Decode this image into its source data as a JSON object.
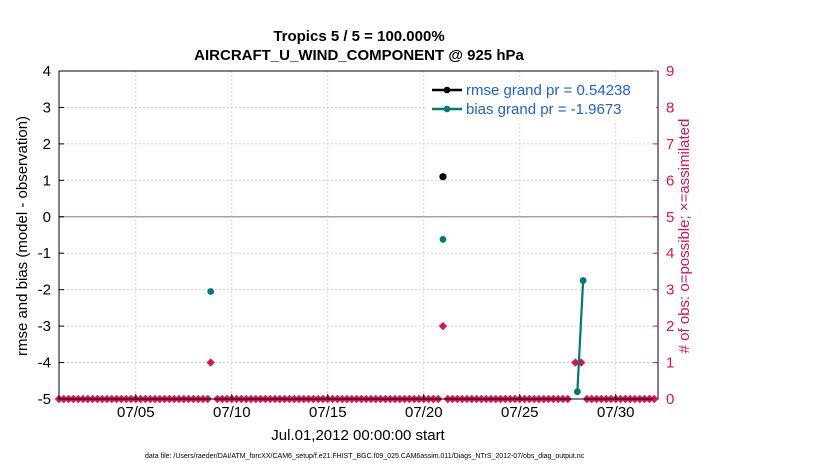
{
  "chart_data": {
    "type": "scatter",
    "title": "Tropics 5 / 5 = 100.000%",
    "subtitle": "AIRCRAFT_U_WIND_COMPONENT @ 925 hPa",
    "xlabel": "Jul.01,2012 00:00:00 start",
    "ylabel_left": "rmse and bias (model - observation)",
    "ylabel_right": "# of obs: o=possible; ×=assimilated",
    "footer": "data file: /Users/raeder/DAI/ATM_forcXX/CAM6_setup/f.e21.FHIST_BGC.f09_025.CAM6assim.011/Diags_NTrS_2012-07/obs_diag_output.nc",
    "xlim": [
      1,
      32.2
    ],
    "ylim_left": [
      -5,
      4
    ],
    "ylim_right": [
      0,
      9
    ],
    "x_ticks": [
      5,
      10,
      15,
      20,
      25,
      30
    ],
    "x_tick_labels": [
      "07/05",
      "07/10",
      "07/15",
      "07/20",
      "07/25",
      "07/30"
    ],
    "y_left_ticks": [
      "4",
      "3",
      "2",
      "1",
      "0",
      "-1",
      "-2",
      "-3",
      "-4",
      "-5"
    ],
    "y_right_ticks": [
      "9",
      "8",
      "7",
      "6",
      "5",
      "4",
      "3",
      "2",
      "1",
      "0"
    ],
    "grid": true,
    "legend_position": "top-right",
    "zero_line": 0,
    "series": [
      {
        "name": "rmse grand pr = 0.54238",
        "color": "#000000",
        "axis": "left",
        "points": [
          [
            21.0,
            1.1
          ]
        ]
      },
      {
        "name": "bias grand pr = -1.9673",
        "color": "#007a78",
        "axis": "left",
        "points": [
          [
            8.9,
            -2.05
          ],
          [
            21.0,
            -0.62
          ],
          [
            28.0,
            -4.8
          ],
          [
            28.3,
            -1.75
          ]
        ],
        "line_segments": [
          [
            [
              28.0,
              -4.8
            ],
            [
              28.3,
              -1.75
            ]
          ]
        ]
      },
      {
        "name": "obs possible",
        "color": "#d6145a",
        "axis": "right",
        "x_start": 1.0,
        "x_end": 32.0,
        "x_step": 0.25,
        "default_value": 0,
        "nonzero_points": [
          [
            8.9,
            1
          ],
          [
            21.0,
            2
          ],
          [
            27.9,
            1
          ],
          [
            28.2,
            1
          ]
        ]
      }
    ]
  },
  "colors": {
    "rmse": "#000000",
    "bias": "#007a78",
    "obs": "#d6145a",
    "legend_text": "#1f5fd6",
    "zero_line": "#b79aa7",
    "grid": "#c7c7c7"
  }
}
